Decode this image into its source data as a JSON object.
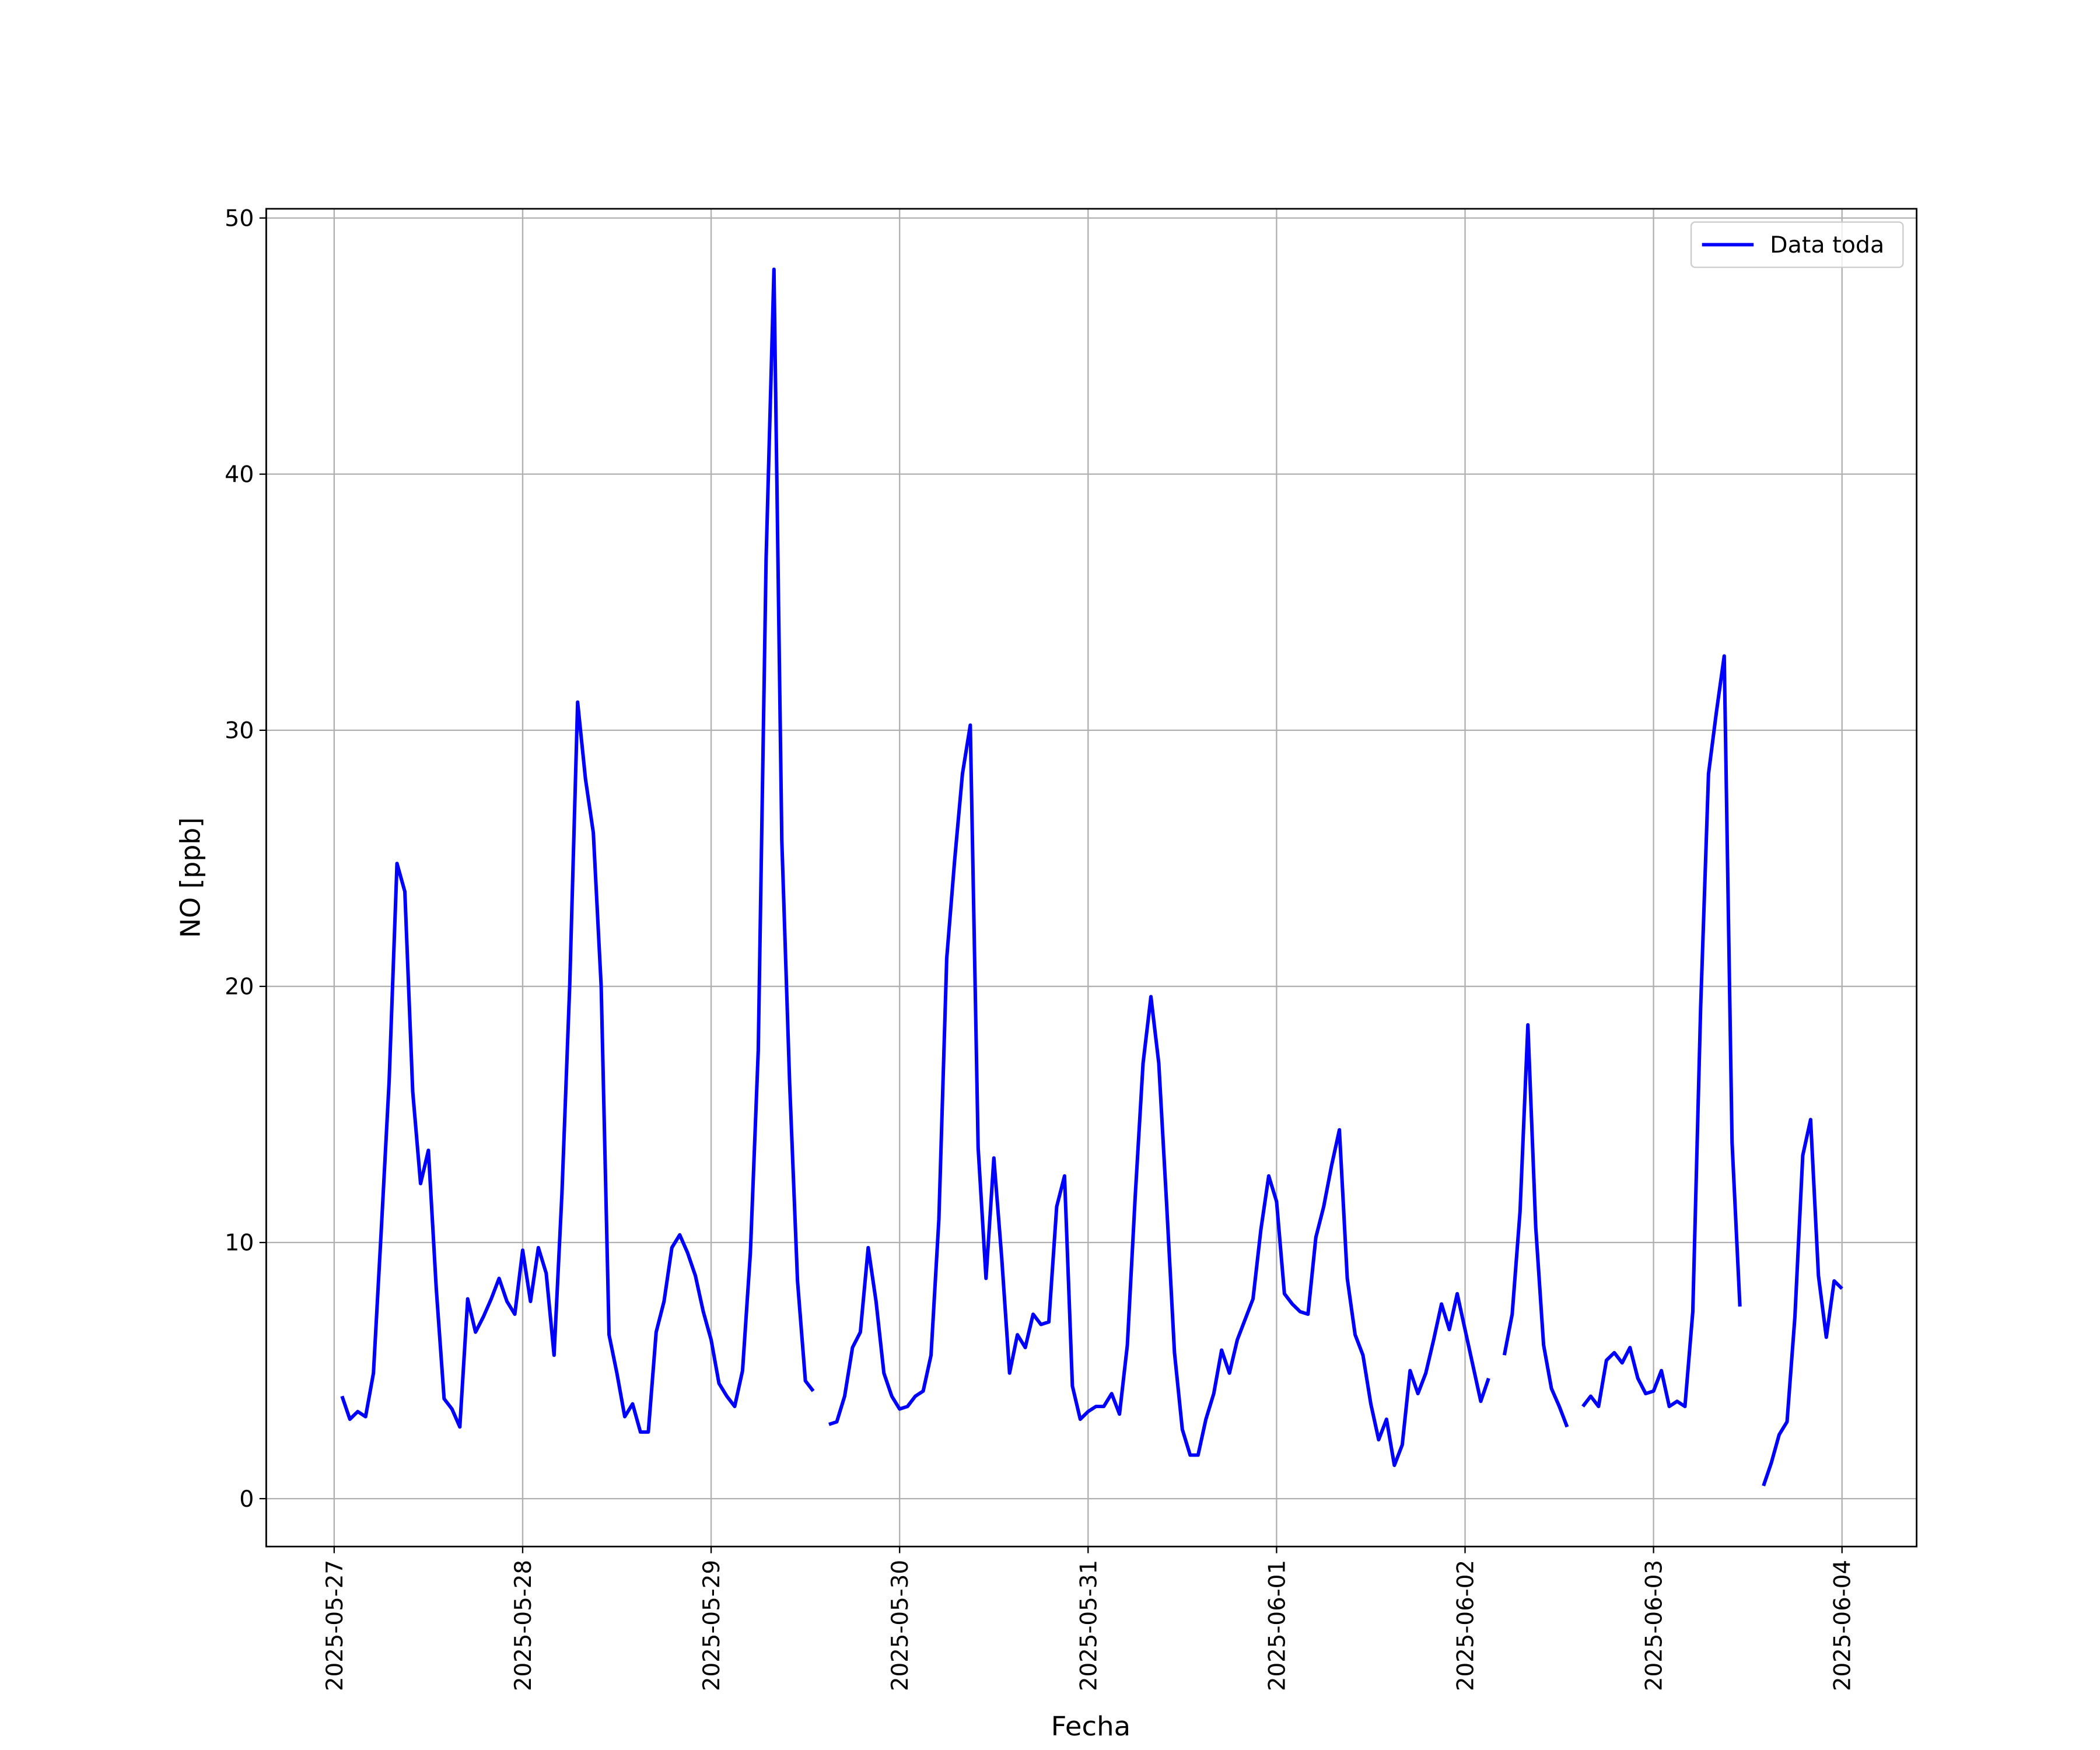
{
  "chart_data": {
    "type": "line",
    "xlabel": "Fecha",
    "ylabel": "NO [ppb]",
    "x": [
      "2025-05-27T01:00",
      "2025-05-27T02:00",
      "2025-05-27T03:00",
      "2025-05-27T04:00",
      "2025-05-27T05:00",
      "2025-05-27T06:00",
      "2025-05-27T07:00",
      "2025-05-27T08:00",
      "2025-05-27T09:00",
      "2025-05-27T10:00",
      "2025-05-27T11:00",
      "2025-05-27T12:00",
      "2025-05-27T13:00",
      "2025-05-27T14:00",
      "2025-05-27T15:00",
      "2025-05-27T16:00",
      "2025-05-27T17:00",
      "2025-05-27T18:00",
      "2025-05-27T19:00",
      "2025-05-27T20:00",
      "2025-05-27T21:00",
      "2025-05-27T22:00",
      "2025-05-27T23:00",
      "2025-05-28T00:00",
      "2025-05-28T01:00",
      "2025-05-28T02:00",
      "2025-05-28T03:00",
      "2025-05-28T04:00",
      "2025-05-28T05:00",
      "2025-05-28T06:00",
      "2025-05-28T07:00",
      "2025-05-28T08:00",
      "2025-05-28T09:00",
      "2025-05-28T10:00",
      "2025-05-28T11:00",
      "2025-05-28T12:00",
      "2025-05-28T13:00",
      "2025-05-28T14:00",
      "2025-05-28T15:00",
      "2025-05-28T16:00",
      "2025-05-28T17:00",
      "2025-05-28T18:00",
      "2025-05-28T19:00",
      "2025-05-28T20:00",
      "2025-05-28T21:00",
      "2025-05-28T22:00",
      "2025-05-28T23:00",
      "2025-05-29T00:00",
      "2025-05-29T01:00",
      "2025-05-29T02:00",
      "2025-05-29T03:00",
      "2025-05-29T04:00",
      "2025-05-29T05:00",
      "2025-05-29T06:00",
      "2025-05-29T07:00",
      "2025-05-29T08:00",
      "2025-05-29T09:00",
      "2025-05-29T10:00",
      "2025-05-29T11:00",
      "2025-05-29T12:00",
      "2025-05-29T13:00",
      "2025-05-29T14:00",
      "2025-05-29T15:00",
      "2025-05-29T16:00",
      "2025-05-29T17:00",
      "2025-05-29T18:00",
      "2025-05-29T19:00",
      "2025-05-29T20:00",
      "2025-05-29T21:00",
      "2025-05-29T22:00",
      "2025-05-29T23:00",
      "2025-05-30T00:00",
      "2025-05-30T01:00",
      "2025-05-30T02:00",
      "2025-05-30T03:00",
      "2025-05-30T04:00",
      "2025-05-30T05:00",
      "2025-05-30T06:00",
      "2025-05-30T07:00",
      "2025-05-30T08:00",
      "2025-05-30T09:00",
      "2025-05-30T10:00",
      "2025-05-30T11:00",
      "2025-05-30T12:00",
      "2025-05-30T13:00",
      "2025-05-30T14:00",
      "2025-05-30T15:00",
      "2025-05-30T16:00",
      "2025-05-30T17:00",
      "2025-05-30T18:00",
      "2025-05-30T19:00",
      "2025-05-30T20:00",
      "2025-05-30T21:00",
      "2025-05-30T22:00",
      "2025-05-30T23:00",
      "2025-05-31T00:00",
      "2025-05-31T01:00",
      "2025-05-31T02:00",
      "2025-05-31T03:00",
      "2025-05-31T04:00",
      "2025-05-31T05:00",
      "2025-05-31T06:00",
      "2025-05-31T07:00",
      "2025-05-31T08:00",
      "2025-05-31T09:00",
      "2025-05-31T10:00",
      "2025-05-31T11:00",
      "2025-05-31T12:00",
      "2025-05-31T13:00",
      "2025-05-31T14:00",
      "2025-05-31T15:00",
      "2025-05-31T16:00",
      "2025-05-31T17:00",
      "2025-05-31T18:00",
      "2025-05-31T19:00",
      "2025-05-31T20:00",
      "2025-05-31T21:00",
      "2025-05-31T22:00",
      "2025-05-31T23:00",
      "2025-06-01T00:00",
      "2025-06-01T01:00",
      "2025-06-01T02:00",
      "2025-06-01T03:00",
      "2025-06-01T04:00",
      "2025-06-01T05:00",
      "2025-06-01T06:00",
      "2025-06-01T07:00",
      "2025-06-01T08:00",
      "2025-06-01T09:00",
      "2025-06-01T10:00",
      "2025-06-01T11:00",
      "2025-06-01T12:00",
      "2025-06-01T13:00",
      "2025-06-01T14:00",
      "2025-06-01T15:00",
      "2025-06-01T16:00",
      "2025-06-01T17:00",
      "2025-06-01T18:00",
      "2025-06-01T19:00",
      "2025-06-01T20:00",
      "2025-06-01T21:00",
      "2025-06-01T22:00",
      "2025-06-01T23:00",
      "2025-06-02T00:00",
      "2025-06-02T01:00",
      "2025-06-02T02:00",
      "2025-06-02T03:00",
      "2025-06-02T04:00",
      "2025-06-02T05:00",
      "2025-06-02T06:00",
      "2025-06-02T07:00",
      "2025-06-02T08:00",
      "2025-06-02T09:00",
      "2025-06-02T10:00",
      "2025-06-02T11:00",
      "2025-06-02T12:00",
      "2025-06-02T13:00",
      "2025-06-02T14:00",
      "2025-06-02T15:00",
      "2025-06-02T16:00",
      "2025-06-02T17:00",
      "2025-06-02T18:00",
      "2025-06-02T19:00",
      "2025-06-02T20:00",
      "2025-06-02T21:00",
      "2025-06-02T22:00",
      "2025-06-02T23:00",
      "2025-06-03T00:00",
      "2025-06-03T01:00",
      "2025-06-03T02:00",
      "2025-06-03T03:00",
      "2025-06-03T04:00",
      "2025-06-03T05:00",
      "2025-06-03T06:00",
      "2025-06-03T07:00",
      "2025-06-03T08:00",
      "2025-06-03T09:00",
      "2025-06-03T10:00",
      "2025-06-03T11:00",
      "2025-06-03T12:00",
      "2025-06-03T13:00",
      "2025-06-03T14:00",
      "2025-06-03T15:00",
      "2025-06-03T16:00",
      "2025-06-03T17:00",
      "2025-06-03T18:00",
      "2025-06-03T19:00",
      "2025-06-03T20:00",
      "2025-06-03T21:00",
      "2025-06-03T22:00",
      "2025-06-03T23:00",
      "2025-06-04T00:00"
    ],
    "series": [
      {
        "name": "Data toda",
        "color": "#0000ff",
        "values": [
          4.0,
          3.1,
          3.4,
          3.2,
          4.9,
          10.5,
          16.3,
          24.8,
          23.7,
          15.9,
          12.3,
          13.6,
          8.2,
          3.9,
          3.5,
          2.8,
          7.8,
          6.5,
          7.1,
          7.8,
          8.6,
          7.7,
          7.2,
          9.7,
          7.7,
          9.8,
          8.8,
          5.6,
          11.9,
          20.1,
          31.1,
          28.1,
          26.0,
          20.0,
          6.4,
          4.9,
          3.2,
          3.7,
          2.6,
          2.6,
          6.5,
          7.7,
          9.8,
          10.3,
          9.6,
          8.7,
          7.3,
          6.2,
          4.5,
          4.0,
          3.6,
          5.0,
          9.6,
          17.5,
          36.7,
          48.0,
          25.7,
          16.2,
          8.5,
          4.6,
          4.2,
          null,
          2.9,
          3.0,
          4.0,
          5.9,
          6.5,
          9.8,
          7.7,
          4.9,
          4.0,
          3.5,
          3.6,
          4.0,
          4.2,
          5.6,
          10.9,
          21.1,
          24.9,
          28.3,
          30.2,
          13.7,
          8.6,
          13.3,
          9.4,
          4.9,
          6.4,
          5.9,
          7.2,
          6.8,
          6.9,
          11.4,
          12.6,
          4.4,
          3.1,
          3.4,
          3.6,
          3.6,
          4.1,
          3.3,
          6.0,
          11.8,
          17.0,
          19.6,
          17.0,
          11.5,
          5.7,
          2.7,
          1.7,
          1.7,
          3.1,
          4.1,
          5.8,
          4.9,
          6.2,
          7.0,
          7.8,
          10.5,
          12.6,
          11.6,
          8.0,
          7.6,
          7.3,
          7.2,
          10.2,
          11.4,
          13.0,
          14.4,
          8.6,
          6.4,
          5.6,
          3.7,
          2.3,
          3.1,
          1.3,
          2.1,
          5.0,
          4.1,
          4.9,
          6.2,
          7.6,
          6.6,
          8.0,
          6.6,
          5.2,
          3.8,
          4.7,
          null,
          5.6,
          7.2,
          11.2,
          18.5,
          10.6,
          6.0,
          4.3,
          3.6,
          2.8,
          null,
          3.6,
          4.0,
          3.6,
          5.4,
          5.7,
          5.3,
          5.9,
          4.7,
          4.1,
          4.2,
          5.0,
          3.6,
          3.8,
          3.6,
          7.3,
          19.2,
          28.3,
          30.7,
          32.9,
          13.9,
          7.5,
          null,
          null,
          0.5,
          1.4,
          2.5,
          3.0,
          7.1,
          13.4,
          14.8,
          8.7,
          6.3,
          8.5,
          8.2
        ]
      }
    ],
    "xlim": [
      "2025-05-26T15:21",
      "2025-06-04T09:30"
    ],
    "xticks": [
      "2025-05-27",
      "2025-05-28",
      "2025-05-29",
      "2025-05-30",
      "2025-05-31",
      "2025-06-01",
      "2025-06-02",
      "2025-06-03",
      "2025-06-04"
    ],
    "ylim": [
      -1.87,
      50.36
    ],
    "yticks": [
      0,
      10,
      20,
      30,
      40,
      50
    ],
    "grid": true,
    "legend": "upper right"
  }
}
